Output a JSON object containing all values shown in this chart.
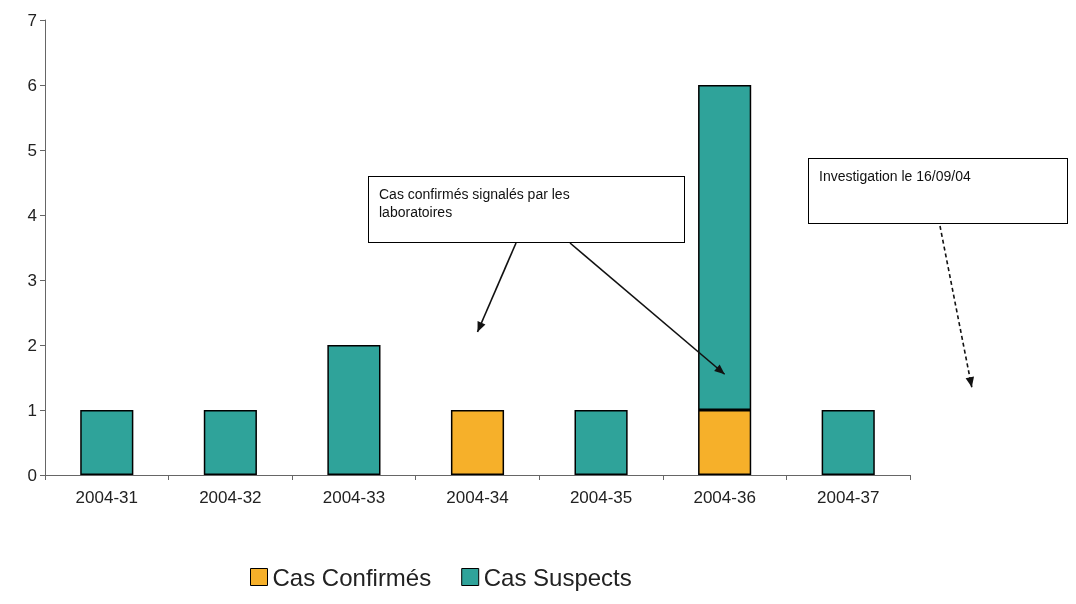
{
  "chart_data": {
    "type": "bar",
    "stacked": true,
    "categories": [
      "2004-31",
      "2004-32",
      "2004-33",
      "2004-34",
      "2004-35",
      "2004-36",
      "2004-37"
    ],
    "series": [
      {
        "name": "Cas Confirmés",
        "color": "#f6b02a",
        "values": [
          null,
          null,
          null,
          1,
          null,
          1,
          null
        ]
      },
      {
        "name": "Cas Suspects",
        "color": "#2fa39a",
        "values": [
          1,
          1,
          2,
          null,
          1,
          5,
          1
        ]
      }
    ],
    "ylim": [
      0,
      7
    ],
    "yticks": [
      0,
      1,
      2,
      3,
      4,
      5,
      6,
      7
    ],
    "grid": false,
    "legend": "bottom",
    "annotations": [
      "Cas confirmés signalés par les laboratoires",
      "Investigation le 16/09/04"
    ]
  }
}
